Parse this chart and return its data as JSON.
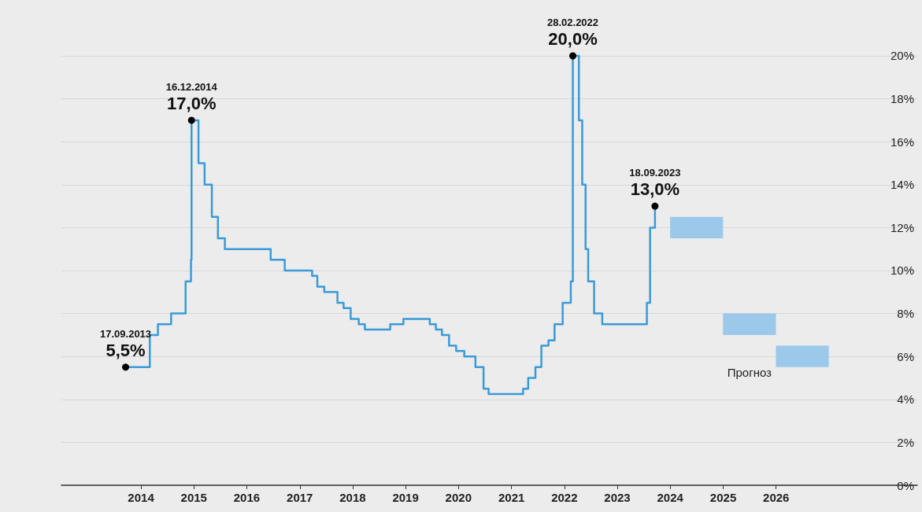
{
  "chart_data": {
    "type": "step",
    "series": [
      {
        "color": "#3a9ad9",
        "x": [
          "2013-09-17",
          "2014-03-03",
          "2014-04-28",
          "2014-07-28",
          "2014-11-05",
          "2014-12-12",
          "2014-12-16",
          "2015-02-02",
          "2015-03-16",
          "2015-05-05",
          "2015-06-16",
          "2015-08-03",
          "2016-06-14",
          "2016-09-19",
          "2017-03-27",
          "2017-05-02",
          "2017-06-19",
          "2017-09-18",
          "2017-10-30",
          "2017-12-18",
          "2018-02-12",
          "2018-03-26",
          "2018-09-17",
          "2018-12-17",
          "2019-06-17",
          "2019-07-29",
          "2019-09-09",
          "2019-10-28",
          "2019-12-16",
          "2020-02-10",
          "2020-04-27",
          "2020-06-22",
          "2020-07-27",
          "2021-03-22",
          "2021-04-26",
          "2021-06-15",
          "2021-07-26",
          "2021-09-13",
          "2021-10-25",
          "2021-12-20",
          "2022-02-14",
          "2022-02-28",
          "2022-04-11",
          "2022-05-04",
          "2022-05-27",
          "2022-06-14",
          "2022-07-25",
          "2022-09-19",
          "2023-07-24",
          "2023-08-15",
          "2023-09-18"
        ],
        "values": [
          5.5,
          7,
          7.5,
          8,
          9.5,
          10.5,
          17,
          15,
          14,
          12.5,
          11.5,
          11,
          10.5,
          10,
          9.75,
          9.25,
          9,
          8.5,
          8.25,
          7.75,
          7.5,
          7.25,
          7.5,
          7.75,
          7.5,
          7.25,
          7,
          6.5,
          6.25,
          6,
          5.5,
          4.5,
          4.25,
          4.5,
          5,
          5.5,
          6.5,
          6.75,
          7.5,
          8.5,
          9.5,
          20,
          17,
          14,
          11,
          9.5,
          8,
          7.5,
          8.5,
          12,
          13
        ]
      },
      {
        "type": "bar",
        "name": "Прогноз",
        "color": "#9cc9ea",
        "x": [
          "2024-07-01",
          "2025-07-01",
          "2026-07-01"
        ],
        "base": [
          11.5,
          7,
          5.5
        ],
        "values": [
          1,
          1,
          1
        ]
      }
    ],
    "annotations": [
      {
        "text": "17.09.2013",
        "x": "2013-09-17",
        "y": 5.5
      },
      {
        "text": "5,5%",
        "x": "2013-09-17",
        "y": 5.5
      },
      {
        "text": "16.12.2014",
        "x": "2014-12-16",
        "y": 17
      },
      {
        "text": "17,0%",
        "x": "2014-12-16",
        "y": 17
      },
      {
        "text": "28.02.2022",
        "x": "2022-02-28",
        "y": 20
      },
      {
        "text": "20,0%",
        "x": "2022-02-28",
        "y": 20
      },
      {
        "text": "18.09.2023",
        "x": "2023-09-18",
        "y": 13
      },
      {
        "text": "13,0%",
        "x": "2023-09-18",
        "y": 13
      }
    ],
    "xlim": [
      "2012-07-01",
      "2028-09-01"
    ],
    "xticks": [
      "2014",
      "2015",
      "2016",
      "2017",
      "2018",
      "2019",
      "2020",
      "2021",
      "2022",
      "2023",
      "2024",
      "2025",
      "2026"
    ],
    "ylim": [
      0,
      22.6
    ],
    "yticks": [
      {
        "value": 0,
        "label": "0%"
      },
      {
        "value": 2,
        "label": "2%"
      },
      {
        "value": 4,
        "label": "4%"
      },
      {
        "value": 6,
        "label": "6%"
      },
      {
        "value": 8,
        "label": "8%"
      },
      {
        "value": 10,
        "label": "10%"
      },
      {
        "value": 12,
        "label": "12%"
      },
      {
        "value": 14,
        "label": "14%"
      },
      {
        "value": 16,
        "label": "16%"
      },
      {
        "value": 18,
        "label": "18%"
      },
      {
        "value": 20,
        "label": "20%"
      }
    ],
    "grid": "y"
  }
}
